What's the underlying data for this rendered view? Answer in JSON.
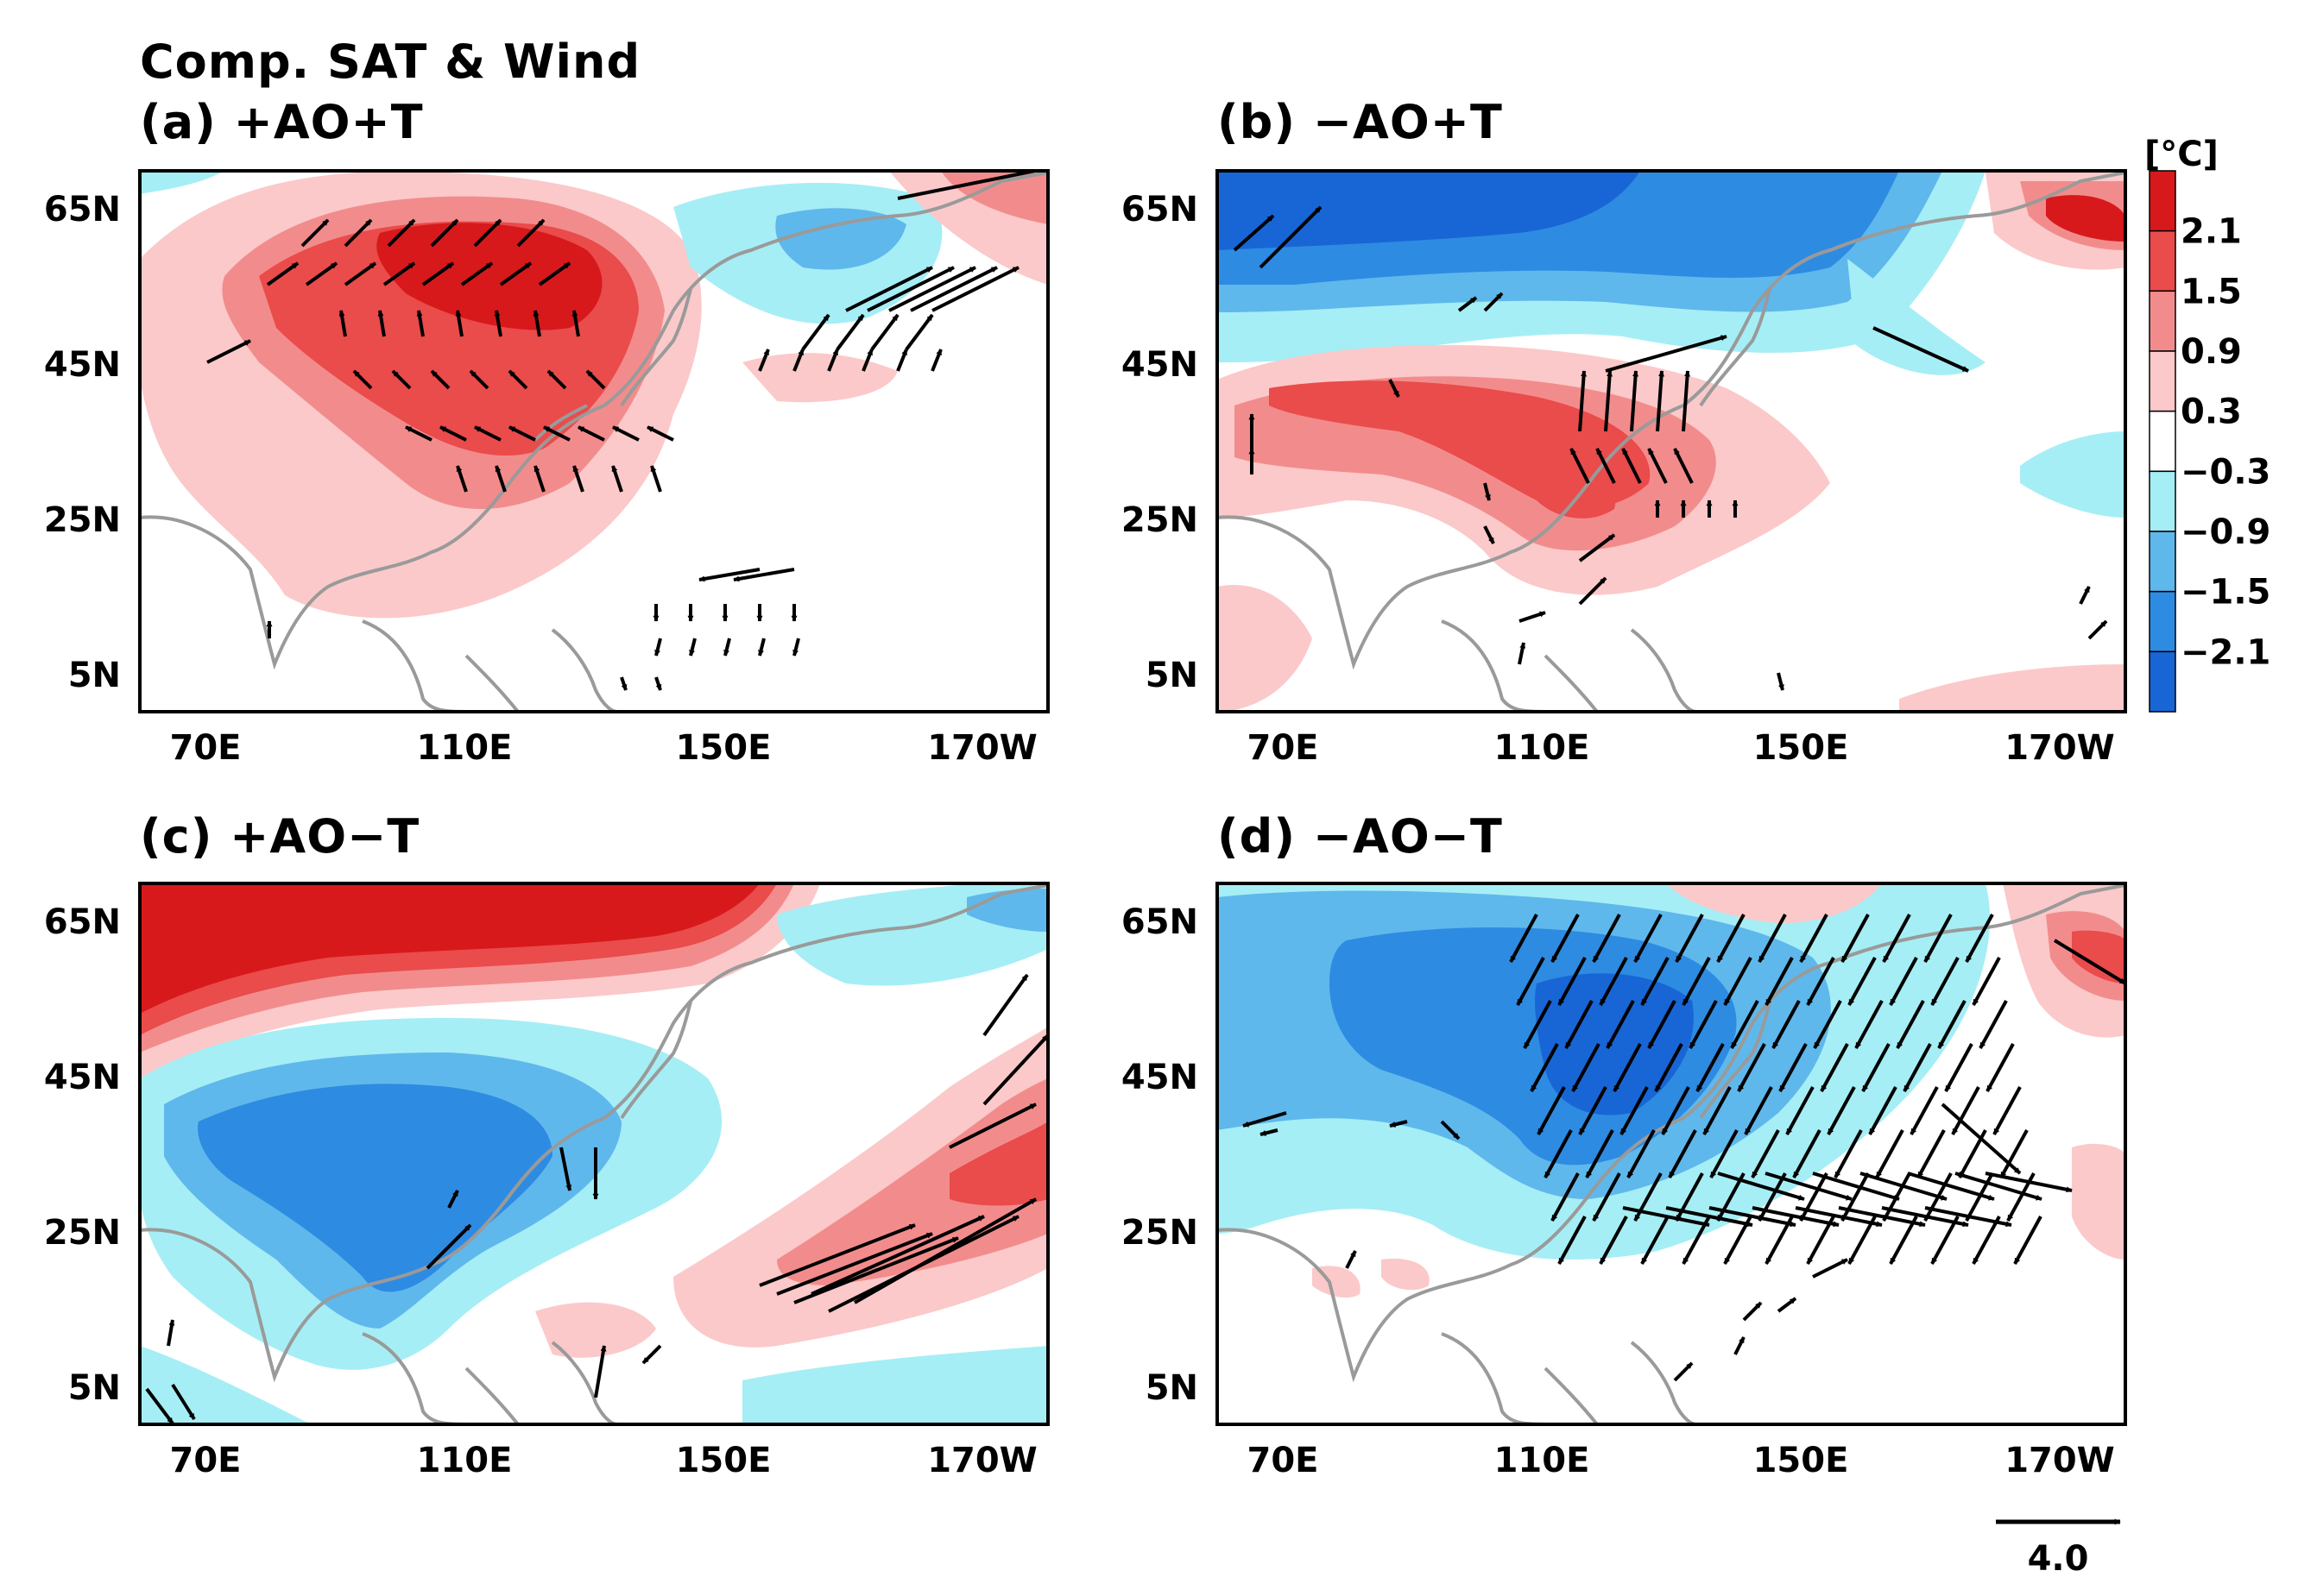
{
  "figure": {
    "main_title": "Comp. SAT & Wind",
    "units_label": "[°C]",
    "reference_vector_label": "4.0",
    "lat_ticks": [
      "65N",
      "45N",
      "25N",
      "5N"
    ],
    "lon_ticks": [
      "70E",
      "110E",
      "150E",
      "170W"
    ],
    "colorbar_levels": [
      "2.1",
      "1.5",
      "0.9",
      "0.3",
      "−0.3",
      "−0.9",
      "−1.5",
      "−2.1"
    ],
    "colorbar_colors": [
      "#d7191c",
      "#ea4b4b",
      "#f28c8c",
      "#fbc9c9",
      "#ffffff",
      "#a6eef5",
      "#5fb8ec",
      "#2e8be2",
      "#1866d6"
    ]
  },
  "panels": [
    {
      "label": "(a) +AO+T"
    },
    {
      "label": "(b) −AO+T"
    },
    {
      "label": "(c) +AO−T"
    },
    {
      "label": "(d) −AO−T"
    }
  ],
  "chart_data": {
    "type": "heatmap",
    "title": "Comp. SAT & Wind",
    "variable": "surface air temperature anomaly composite with wind vectors",
    "units": "°C",
    "contour_levels": [
      -2.1,
      -1.5,
      -0.9,
      -0.3,
      0.3,
      0.9,
      1.5,
      2.1
    ],
    "lon_range": [
      55,
      195
    ],
    "lat_range": [
      -3,
      73
    ],
    "reference_vector": 4.0,
    "panels": [
      {
        "name": "(a) +AO+T",
        "summary": "warm anomalies over Siberia/Mongolia/East Asia (up to >2.1), cool over NW Pacific"
      },
      {
        "name": "(b) −AO+T",
        "summary": "cold over Siberia (<−2.1), warm over southern/East Asia and Bering region"
      },
      {
        "name": "(c) +AO−T",
        "summary": "strong warm north of 55N, cold over central and southern East Asia"
      },
      {
        "name": "(d) −AO−T",
        "summary": "cold over East Asia and NW Pacific with strong northerly/northwesterly winds"
      }
    ]
  }
}
